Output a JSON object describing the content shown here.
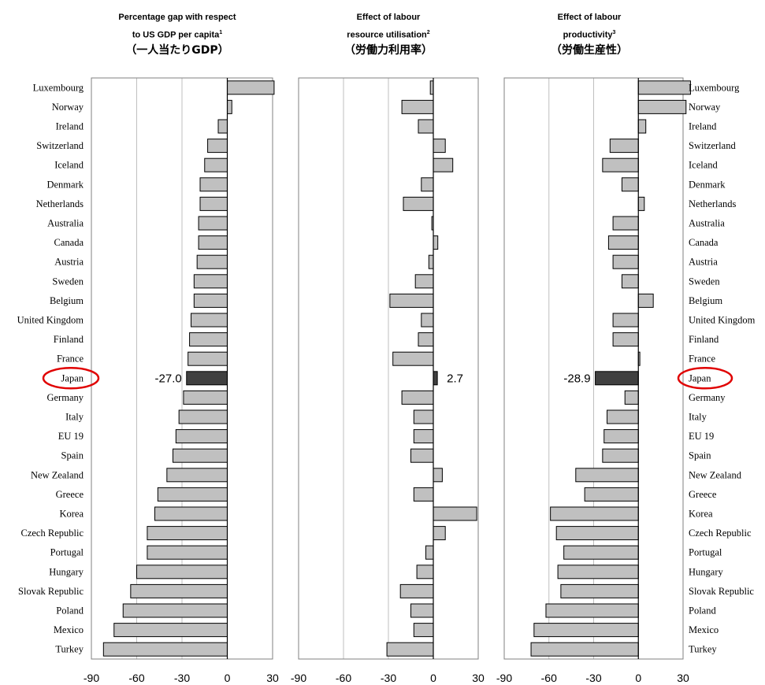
{
  "colors": {
    "bar": "#c0c0c0",
    "highlight_bar": "#404040",
    "bar_stroke": "#000000",
    "grid": "#bfbfbf",
    "frame": "#808080",
    "circle": "#e00000"
  },
  "highlight": "Japan",
  "chart_data": [
    {
      "type": "bar",
      "orientation": "horizontal",
      "title_en": "Percentage gap with respect to US GDP per capita",
      "title_sup": "1",
      "title_jp": "（一人当たりGDP）",
      "xlim": [
        -90,
        30
      ],
      "xticks": [
        "-90",
        "-60",
        "-30",
        "0",
        "30"
      ],
      "grid": true,
      "categories": [
        "Luxembourg",
        "Norway",
        "Ireland",
        "Switzerland",
        "Iceland",
        "Denmark",
        "Netherlands",
        "Australia",
        "Canada",
        "Austria",
        "Sweden",
        "Belgium",
        "United Kingdom",
        "Finland",
        "France",
        "Japan",
        "Germany",
        "Italy",
        "EU 19",
        "Spain",
        "New Zealand",
        "Greece",
        "Korea",
        "Czech Republic",
        "Portugal",
        "Hungary",
        "Slovak Republic",
        "Poland",
        "Mexico",
        "Turkey"
      ],
      "values": [
        31,
        3,
        -6,
        -13,
        -15,
        -18,
        -18,
        -19,
        -19,
        -20,
        -22,
        -22,
        -24,
        -25,
        -26,
        -27.0,
        -29,
        -32,
        -34,
        -36,
        -40,
        -46,
        -48,
        -53,
        -53,
        -60,
        -64,
        -69,
        -75,
        -82
      ],
      "annotation": "-27.0"
    },
    {
      "type": "bar",
      "orientation": "horizontal",
      "title_en_1": "Effect of labour",
      "title_en_2": "resource utilisation",
      "title_sup": "2",
      "title_jp": "（労働力利用率）",
      "xlim": [
        -90,
        30
      ],
      "xticks": [
        "-90",
        "-60",
        "-30",
        "0",
        "30"
      ],
      "grid": true,
      "values": [
        -2,
        -21,
        -10,
        8,
        13,
        -8,
        -20,
        -1,
        3,
        -3,
        -12,
        -29,
        -8,
        -10,
        -27,
        2.7,
        -21,
        -13,
        -13,
        -15,
        6,
        -13,
        29,
        8,
        -5,
        -11,
        -22,
        -15,
        -13,
        -31
      ],
      "annotation": "2.7"
    },
    {
      "type": "bar",
      "orientation": "horizontal",
      "title_en_1": "Effect of labour",
      "title_en_2": "productivity",
      "title_sup": "3",
      "title_jp": "（労働生産性）",
      "xlim": [
        -90,
        30
      ],
      "xticks": [
        "-90",
        "-60",
        "-30",
        "0",
        "30"
      ],
      "grid": true,
      "values": [
        35,
        32,
        5,
        -19,
        -24,
        -11,
        4,
        -17,
        -20,
        -17,
        -11,
        10,
        -17,
        -17,
        1,
        -28.9,
        -9,
        -21,
        -23,
        -24,
        -42,
        -36,
        -59,
        -55,
        -50,
        -54,
        -52,
        -62,
        -70,
        -72
      ],
      "annotation": "-28.9"
    }
  ]
}
